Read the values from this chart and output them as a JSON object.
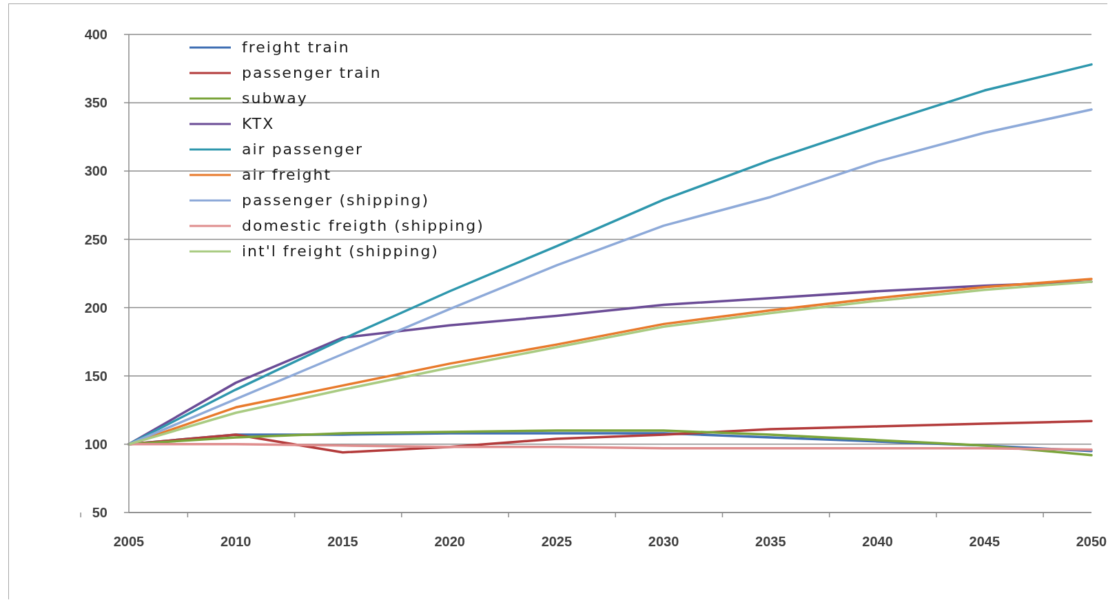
{
  "chart_data": {
    "type": "line",
    "categories": [
      "2005",
      "2010",
      "2015",
      "2020",
      "2025",
      "2030",
      "2035",
      "2040",
      "2045",
      "2050"
    ],
    "series": [
      {
        "name": "freight train",
        "color": "#3f6fb3",
        "values": [
          100,
          107,
          107,
          108,
          108,
          108,
          105,
          102,
          99,
          95
        ]
      },
      {
        "name": "passenger train",
        "color": "#b33b3b",
        "values": [
          100,
          107,
          94,
          98,
          104,
          107,
          111,
          113,
          115,
          117
        ]
      },
      {
        "name": "subway",
        "color": "#7aa43a",
        "values": [
          100,
          105,
          108,
          109,
          110,
          110,
          107,
          103,
          99,
          92
        ]
      },
      {
        "name": "KTX",
        "color": "#6b4c96",
        "values": [
          100,
          145,
          178,
          187,
          194,
          202,
          207,
          212,
          216,
          219
        ]
      },
      {
        "name": "air passenger",
        "color": "#2e97ad",
        "values": [
          100,
          140,
          177,
          212,
          245,
          279,
          308,
          334,
          359,
          378
        ]
      },
      {
        "name": "air freight",
        "color": "#e87a2c",
        "values": [
          100,
          127,
          143,
          159,
          173,
          188,
          198,
          207,
          215,
          221
        ]
      },
      {
        "name": "passenger (shipping)",
        "color": "#8eaad9",
        "values": [
          100,
          133,
          166,
          199,
          231,
          260,
          281,
          307,
          328,
          345
        ]
      },
      {
        "name": "domestic freigth (shipping)",
        "color": "#df8d8d",
        "values": [
          100,
          100,
          99,
          98,
          98,
          97,
          97,
          97,
          97,
          96
        ]
      },
      {
        "name": "int'l freight (shipping)",
        "color": "#a9cb82",
        "values": [
          100,
          123,
          140,
          156,
          171,
          186,
          196,
          205,
          213,
          219
        ]
      }
    ],
    "ylim": [
      50,
      400
    ],
    "yticks": [
      50,
      100,
      150,
      200,
      250,
      300,
      350,
      400
    ],
    "grid": "y",
    "legend": "top left"
  }
}
